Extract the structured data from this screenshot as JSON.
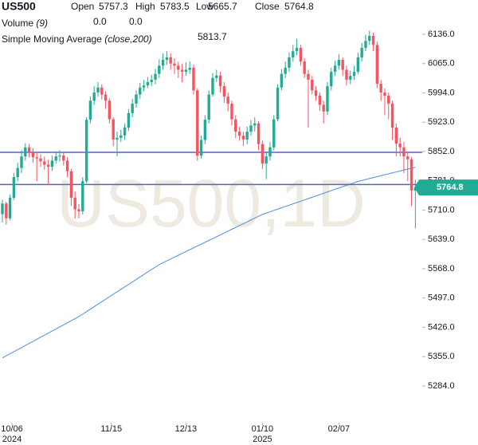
{
  "chart_data": {
    "type": "candlestick",
    "symbol": "US500",
    "watermark": "US500,1D",
    "labels": {
      "open": "Open",
      "high": "High",
      "low": "Low",
      "close": "Close"
    },
    "up_color": "#22ab94",
    "down_color": "#f7525f",
    "open": [
      5700,
      5726,
      5690,
      5740,
      5790,
      5812,
      5840,
      5862,
      5850,
      5838,
      5835,
      5828,
      5820,
      5815,
      5830,
      5840,
      5842,
      5830,
      5804,
      5740,
      5712,
      5707,
      5780,
      5929,
      5975,
      5995,
      6007,
      5990,
      5975,
      5930,
      5881,
      5885,
      5891,
      5910,
      5945,
      5968,
      5990,
      6007,
      6012,
      6020,
      6026,
      6040,
      6060,
      6074,
      6080,
      6065,
      6060,
      6050,
      6045,
      6050,
      6055,
      6000,
      5842,
      5880,
      5929,
      5990,
      6030,
      6036,
      6010,
      5985,
      5968,
      5930,
      5900,
      5890,
      5881,
      5900,
      5915,
      5920,
      5870,
      5823,
      5840,
      5862,
      5930,
      6007,
      6040,
      6055,
      6080,
      6095,
      6103,
      6070,
      6040,
      6026,
      6000,
      5987,
      5965,
      5949,
      6010,
      6045,
      6060,
      6074,
      6050,
      6026,
      6035,
      6045,
      6080,
      6103,
      6120,
      6132,
      6110,
      6016,
      5995,
      5987,
      5968,
      5910,
      5871,
      5862,
      5840,
      5833,
      5757.3
    ],
    "high": [
      5735,
      5730,
      5748,
      5800,
      5825,
      5855,
      5872,
      5870,
      5860,
      5848,
      5845,
      5840,
      5832,
      5842,
      5852,
      5855,
      5850,
      5838,
      5810,
      5755,
      5725,
      5790,
      5935,
      5985,
      6010,
      6020,
      6015,
      5998,
      5980,
      5935,
      5900,
      5905,
      5920,
      5955,
      5980,
      6000,
      6018,
      6025,
      6032,
      6038,
      6052,
      6075,
      6090,
      6095,
      6090,
      6078,
      6070,
      6065,
      6068,
      6070,
      6062,
      6005,
      5890,
      5940,
      6000,
      6042,
      6050,
      6045,
      6020,
      5995,
      5975,
      5940,
      5912,
      5900,
      5912,
      5928,
      5935,
      5925,
      5878,
      5852,
      5875,
      5940,
      6015,
      6052,
      6070,
      6092,
      6110,
      6125,
      6110,
      6078,
      6050,
      6035,
      6010,
      5995,
      5975,
      6020,
      6055,
      6072,
      6088,
      6080,
      6060,
      6048,
      6060,
      6092,
      6115,
      6135,
      6145,
      6140,
      6118,
      6025,
      6005,
      5995,
      5975,
      5920,
      5885,
      5875,
      5850,
      5838,
      5783.5
    ],
    "low": [
      5680,
      5675,
      5685,
      5735,
      5780,
      5800,
      5830,
      5838,
      5825,
      5780,
      5815,
      5808,
      5770,
      5805,
      5822,
      5828,
      5818,
      5790,
      5720,
      5690,
      5690,
      5700,
      5775,
      5920,
      5965,
      5985,
      5978,
      5955,
      5920,
      5865,
      5840,
      5875,
      5880,
      5902,
      5935,
      5958,
      5980,
      5998,
      6005,
      6010,
      6015,
      6030,
      6050,
      6062,
      6050,
      6040,
      6030,
      6020,
      6035,
      6040,
      5990,
      5830,
      5835,
      5870,
      5920,
      5985,
      6020,
      5995,
      5970,
      5950,
      5915,
      5885,
      5878,
      5865,
      5870,
      5890,
      5900,
      5855,
      5810,
      5785,
      5830,
      5855,
      5925,
      6000,
      6030,
      6045,
      6070,
      6085,
      6060,
      6030,
      5910,
      5990,
      5975,
      5950,
      5920,
      5940,
      6000,
      6035,
      6050,
      6035,
      6012,
      6015,
      6025,
      6040,
      6070,
      6095,
      6110,
      6095,
      6005,
      5975,
      5940,
      5930,
      5880,
      5840,
      5840,
      5800,
      5780,
      5720,
      5665.7
    ],
    "close": [
      5726,
      5690,
      5740,
      5790,
      5812,
      5840,
      5862,
      5850,
      5838,
      5835,
      5828,
      5820,
      5815,
      5830,
      5840,
      5842,
      5830,
      5804,
      5740,
      5712,
      5707,
      5780,
      5929,
      5975,
      5995,
      6007,
      5990,
      5975,
      5930,
      5881,
      5885,
      5891,
      5910,
      5945,
      5968,
      5990,
      6007,
      6012,
      6020,
      6026,
      6040,
      6060,
      6074,
      6080,
      6065,
      6060,
      6050,
      6045,
      6050,
      6055,
      6000,
      5842,
      5880,
      5929,
      5990,
      6030,
      6036,
      6010,
      5985,
      5968,
      5930,
      5900,
      5890,
      5881,
      5900,
      5915,
      5920,
      5870,
      5823,
      5840,
      5862,
      5930,
      6007,
      6040,
      6055,
      6080,
      6095,
      6103,
      6070,
      6040,
      6026,
      6000,
      5987,
      5965,
      5949,
      6010,
      6045,
      6060,
      6074,
      6050,
      6026,
      6035,
      6045,
      6080,
      6103,
      6120,
      6132,
      6110,
      6016,
      5995,
      5987,
      5968,
      5910,
      5871,
      5862,
      5840,
      5833,
      5757.3,
      5764.8
    ],
    "volume": {
      "name": "Volume",
      "params": "(9)",
      "readings": [
        {
          "value": 0,
          "label": "0.0",
          "color": "#f23645"
        },
        {
          "value": 0,
          "label": "0.0",
          "color": "#2962ff"
        }
      ]
    },
    "sma": {
      "name": "Simple Moving Average",
      "params": "(close,200)",
      "color": "#4a90e2",
      "values": [
        5352,
        5357,
        5362,
        5367,
        5372,
        5377,
        5382,
        5387,
        5392,
        5397,
        5402,
        5407,
        5412,
        5417,
        5422,
        5427,
        5432,
        5437,
        5442,
        5447,
        5452,
        5458,
        5464,
        5470,
        5476,
        5482,
        5488,
        5494,
        5500,
        5506,
        5512,
        5518,
        5524,
        5530,
        5536,
        5542,
        5548,
        5554,
        5560,
        5566,
        5572,
        5578,
        5582.5,
        5587,
        5591.5,
        5596,
        5600.5,
        5605,
        5609.5,
        5614,
        5618.5,
        5623,
        5627.5,
        5632,
        5636.5,
        5641,
        5645.5,
        5650,
        5654.5,
        5659,
        5663.5,
        5668,
        5672.5,
        5677,
        5681.5,
        5686,
        5690.5,
        5695,
        5699.5,
        5702.7,
        5705.9,
        5709.1,
        5712.3,
        5715.5,
        5718.7,
        5721.9,
        5725.1,
        5728.3,
        5731.5,
        5734.7,
        5737.9,
        5741.1,
        5744.3,
        5747.5,
        5750.7,
        5753.9,
        5757.1,
        5760.3,
        5763.5,
        5766.7,
        5769.9,
        5773.1,
        5776.3,
        5779.5,
        5781.8,
        5784.1,
        5786.4,
        5788.7,
        5791,
        5793.3,
        5795.6,
        5797.9,
        5800.2,
        5802.5,
        5804.8,
        5807.1,
        5809.4,
        5811.7,
        5813.7
      ]
    },
    "hlines": {
      "values": [
        5850,
        5772
      ],
      "color": "#5563c1"
    },
    "ylim": [
      5195,
      6219
    ],
    "yticks": [
      {
        "value": 5284,
        "label": "5284.0"
      },
      {
        "value": 5355,
        "label": "5355.0"
      },
      {
        "value": 5426,
        "label": "5426.0"
      },
      {
        "value": 5497,
        "label": "5497.0"
      },
      {
        "value": 5568,
        "label": "5568.0"
      },
      {
        "value": 5639,
        "label": "5639.0"
      },
      {
        "value": 5710,
        "label": "5710.0"
      },
      {
        "value": 5781,
        "label": "5781.0"
      },
      {
        "value": 5852,
        "label": "5852.0"
      },
      {
        "value": 5923,
        "label": "5923.0"
      },
      {
        "value": 5994,
        "label": "5994.0"
      },
      {
        "value": 6065,
        "label": "6065.0"
      },
      {
        "value": 6136,
        "label": "6136.0"
      }
    ],
    "xlim": [
      -0.625,
      109.8
    ],
    "xticks": [
      {
        "value": 2.5,
        "label": "10/06",
        "year": "2024"
      },
      {
        "value": 28.5,
        "label": "11/15"
      },
      {
        "value": 48,
        "label": "12/13"
      },
      {
        "value": 68,
        "label": "01/10",
        "year": "2025"
      },
      {
        "value": 88,
        "label": "02/07"
      }
    ]
  }
}
